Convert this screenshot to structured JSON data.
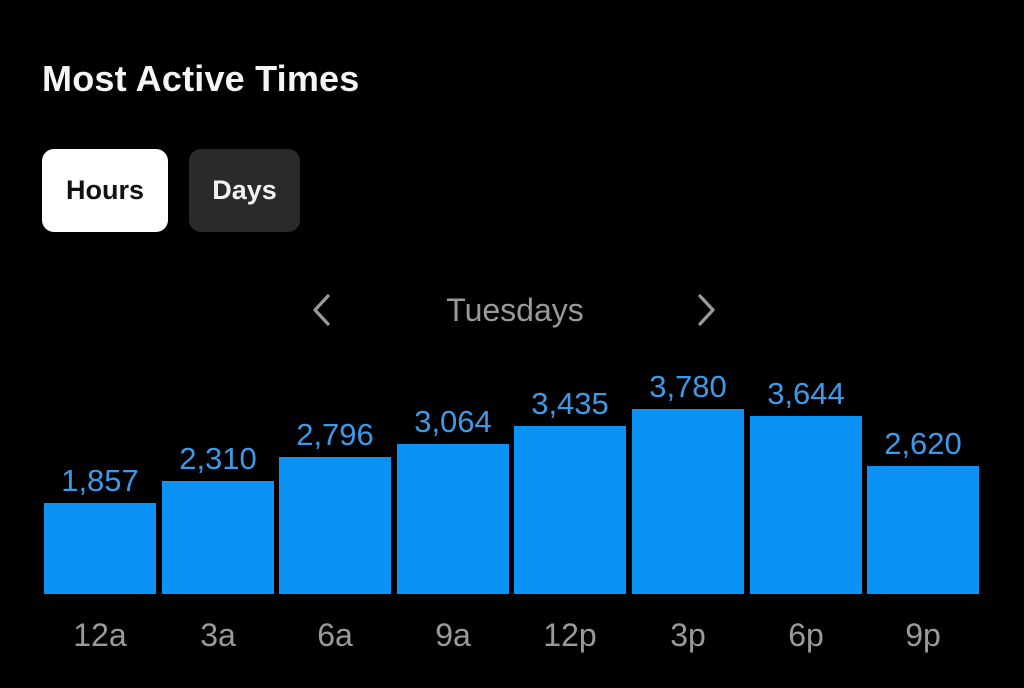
{
  "header": {
    "title": "Most Active Times"
  },
  "toggle": {
    "options": [
      {
        "label": "Hours",
        "active": true
      },
      {
        "label": "Days",
        "active": false
      }
    ]
  },
  "navigator": {
    "label": "Tuesdays",
    "prev_icon": "chevron-left-icon",
    "next_icon": "chevron-right-icon"
  },
  "colors": {
    "background": "#000000",
    "bar": "#0a93f5",
    "value_label": "#3d9ae8",
    "axis_label": "#9a9a9a"
  },
  "chart_data": {
    "type": "bar",
    "title": "Most Active Times",
    "subtitle": "Tuesdays",
    "categories": [
      "12a",
      "3a",
      "6a",
      "9a",
      "12p",
      "3p",
      "6p",
      "9p"
    ],
    "values": [
      1857,
      2310,
      2796,
      3064,
      3435,
      3780,
      3644,
      2620
    ],
    "value_labels": [
      "1,857",
      "2,310",
      "2,796",
      "3,064",
      "3,435",
      "3,780",
      "3,644",
      "2,620"
    ],
    "xlabel": "",
    "ylabel": "",
    "ylim": [
      0,
      3780
    ],
    "grid": false,
    "legend": null
  }
}
